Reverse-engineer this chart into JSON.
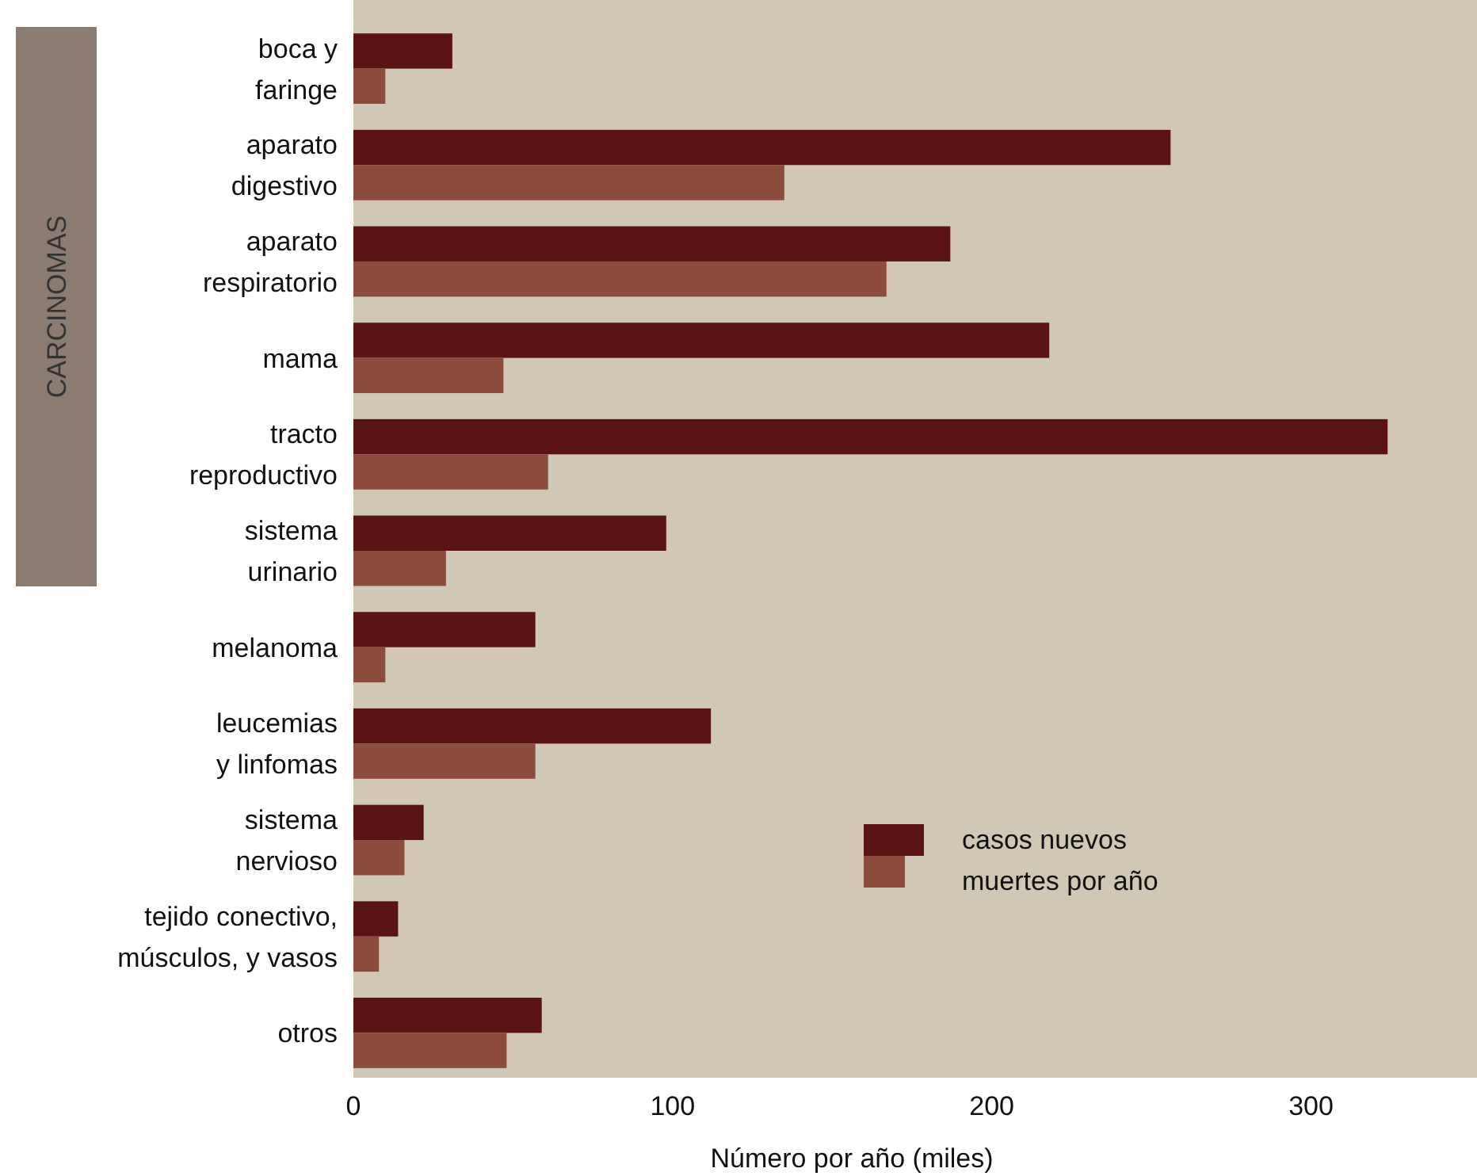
{
  "chart_data": {
    "type": "bar",
    "orientation": "horizontal",
    "xlabel": "Número por año (miles)",
    "categories": [
      "boca y\nfaringe",
      "aparato\ndigestivo",
      "aparato\nrespiratorio",
      "mama",
      "tracto\nreproductivo",
      "sistema\nurinario",
      "melanoma",
      "leucemias\ny linfomas",
      "sistema\nnervioso",
      "tejido conectivo,\nmúsculos, y vasos",
      "otros"
    ],
    "series": [
      {
        "name": "casos nuevos",
        "color": "#5a1414",
        "values": [
          31,
          256,
          187,
          218,
          324,
          98,
          57,
          112,
          22,
          14,
          59
        ]
      },
      {
        "name": "muertes por año",
        "color": "#8b4c3c",
        "values": [
          10,
          135,
          167,
          47,
          61,
          29,
          10,
          57,
          16,
          8,
          48
        ]
      }
    ],
    "xlim": [
      0,
      352
    ],
    "xticks": [
      0,
      100,
      200,
      300
    ],
    "grid": false,
    "legend": "bottom right",
    "annotations": [
      "CARCINOMAS"
    ]
  }
}
